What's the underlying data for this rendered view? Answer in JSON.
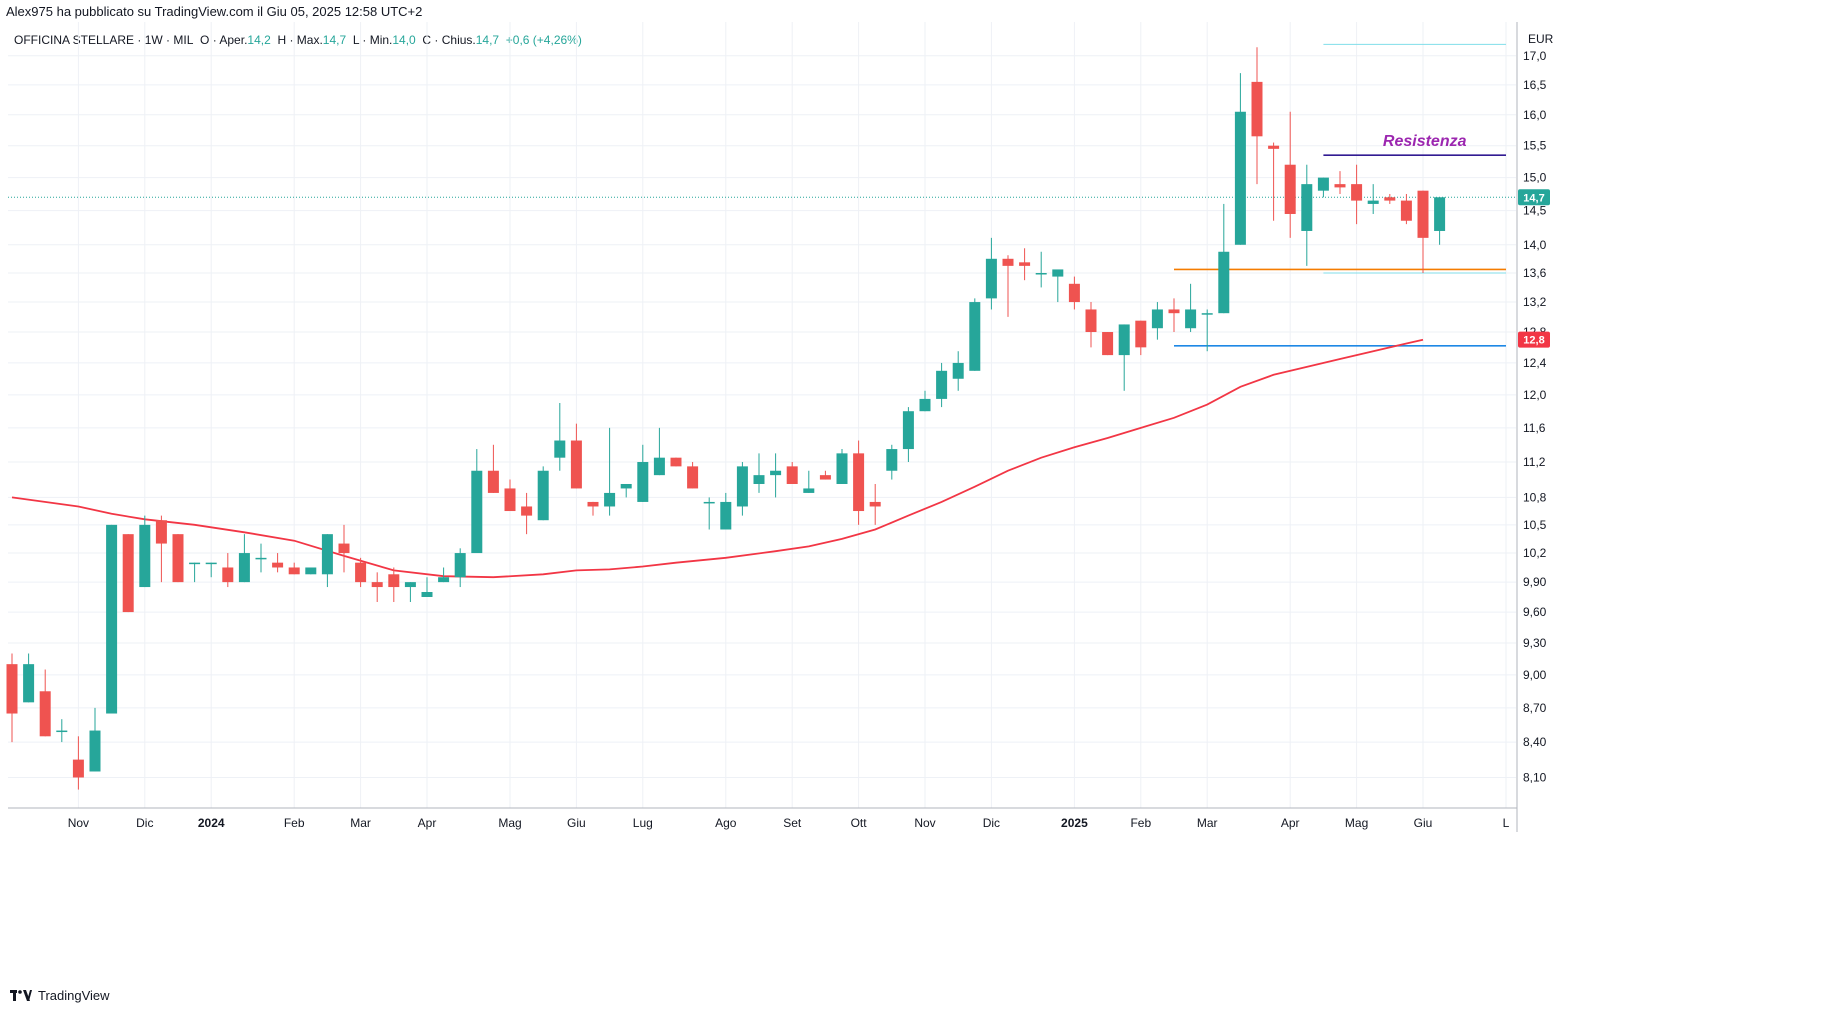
{
  "header": {
    "published_by": "Alex975 ha pubblicato su TradingView.com il Giu 05, 2025 12:58 UTC+2"
  },
  "legend": {
    "symbol": "OFFICINA STELLARE · 1W · MIL",
    "open_label": "O · Aper.",
    "open": "14,2",
    "high_label": "H · Max.",
    "high": "14,7",
    "low_label": "L · Min.",
    "low": "14,0",
    "close_label": "C · Chius.",
    "close": "14,7",
    "change": "+0,6 (+4,26%)"
  },
  "footer": {
    "brand": "TradingView"
  },
  "colors": {
    "up": "#26a69a",
    "down": "#ef5350",
    "ma": "#f23645",
    "resistance": "#311b92",
    "resistance_label": "#9c27b0",
    "support_orange": "#f57c00",
    "support_blue": "#1e88e5",
    "cyan_level": "#80deea",
    "grid": "#eef1f6"
  },
  "chart_data": {
    "type": "candlestick",
    "currency": "EUR",
    "y_scale": "log",
    "ylim": [
      7.85,
      17.6
    ],
    "y_ticks": [
      "17,0",
      "16,5",
      "16,0",
      "15,5",
      "15,0",
      "14,5",
      "14,0",
      "13,6",
      "13,2",
      "12,8",
      "12,4",
      "12,0",
      "11,6",
      "11,2",
      "10,8",
      "10,5",
      "10,2",
      "9,90",
      "9,60",
      "9,30",
      "9,00",
      "8,70",
      "8,40",
      "8,10"
    ],
    "y_tick_values": [
      17.0,
      16.5,
      16.0,
      15.5,
      15.0,
      14.5,
      14.0,
      13.6,
      13.2,
      12.8,
      12.4,
      12.0,
      11.6,
      11.2,
      10.8,
      10.5,
      10.2,
      9.9,
      9.6,
      9.3,
      9.0,
      8.7,
      8.4,
      8.1
    ],
    "x_labels": [
      {
        "label": "Nov",
        "i": 4
      },
      {
        "label": "Dic",
        "i": 8
      },
      {
        "label": "2024",
        "i": 12
      },
      {
        "label": "Feb",
        "i": 17
      },
      {
        "label": "Mar",
        "i": 21
      },
      {
        "label": "Apr",
        "i": 25
      },
      {
        "label": "Mag",
        "i": 30
      },
      {
        "label": "Giu",
        "i": 34
      },
      {
        "label": "Lug",
        "i": 38
      },
      {
        "label": "Ago",
        "i": 43
      },
      {
        "label": "Set",
        "i": 47
      },
      {
        "label": "Ott",
        "i": 51
      },
      {
        "label": "Nov",
        "i": 55
      },
      {
        "label": "Dic",
        "i": 59
      },
      {
        "label": "2025",
        "i": 64
      },
      {
        "label": "Feb",
        "i": 68
      },
      {
        "label": "Mar",
        "i": 72
      },
      {
        "label": "Apr",
        "i": 77
      },
      {
        "label": "Mag",
        "i": 81
      },
      {
        "label": "Giu",
        "i": 85
      },
      {
        "label": "L",
        "i": 90
      }
    ],
    "candles": [
      {
        "o": 9.1,
        "h": 9.2,
        "c": 8.65,
        "l": 8.4
      },
      {
        "o": 8.75,
        "h": 9.2,
        "c": 9.1,
        "l": 8.75
      },
      {
        "o": 8.85,
        "h": 9.05,
        "c": 8.45,
        "l": 8.45
      },
      {
        "o": 8.5,
        "h": 8.6,
        "c": 8.5,
        "l": 8.4
      },
      {
        "o": 8.25,
        "h": 8.45,
        "c": 8.1,
        "l": 8.0
      },
      {
        "o": 8.15,
        "h": 8.7,
        "c": 8.5,
        "l": 8.15
      },
      {
        "o": 8.65,
        "h": 10.5,
        "c": 10.5,
        "l": 8.65
      },
      {
        "o": 10.4,
        "h": 10.4,
        "c": 9.6,
        "l": 9.6
      },
      {
        "o": 9.85,
        "h": 10.6,
        "c": 10.5,
        "l": 9.85
      },
      {
        "o": 10.55,
        "h": 10.6,
        "c": 10.3,
        "l": 9.9
      },
      {
        "o": 10.4,
        "h": 10.4,
        "c": 9.9,
        "l": 9.9
      },
      {
        "o": 10.1,
        "h": 10.1,
        "c": 10.1,
        "l": 9.9
      },
      {
        "o": 10.1,
        "h": 10.1,
        "c": 10.1,
        "l": 9.95
      },
      {
        "o": 10.05,
        "h": 10.2,
        "c": 9.9,
        "l": 9.85
      },
      {
        "o": 9.9,
        "h": 10.4,
        "c": 10.2,
        "l": 9.9
      },
      {
        "o": 10.15,
        "h": 10.3,
        "c": 10.15,
        "l": 10.0
      },
      {
        "o": 10.1,
        "h": 10.2,
        "c": 10.05,
        "l": 10.0
      },
      {
        "o": 10.05,
        "h": 10.1,
        "c": 9.98,
        "l": 9.98
      },
      {
        "o": 9.98,
        "h": 10.05,
        "c": 10.05,
        "l": 9.98
      },
      {
        "o": 9.98,
        "h": 10.4,
        "c": 10.4,
        "l": 9.85
      },
      {
        "o": 10.3,
        "h": 10.5,
        "c": 10.2,
        "l": 10.0
      },
      {
        "o": 10.1,
        "h": 10.15,
        "c": 9.9,
        "l": 9.85
      },
      {
        "o": 9.9,
        "h": 10.0,
        "c": 9.85,
        "l": 9.7
      },
      {
        "o": 9.98,
        "h": 10.05,
        "c": 9.85,
        "l": 9.7
      },
      {
        "o": 9.85,
        "h": 9.9,
        "c": 9.9,
        "l": 9.7
      },
      {
        "o": 9.75,
        "h": 9.95,
        "c": 9.8,
        "l": 9.75
      },
      {
        "o": 9.9,
        "h": 10.05,
        "c": 9.95,
        "l": 9.9
      },
      {
        "o": 9.95,
        "h": 10.25,
        "c": 10.2,
        "l": 9.85
      },
      {
        "o": 10.2,
        "h": 11.35,
        "c": 11.1,
        "l": 10.25
      },
      {
        "o": 11.1,
        "h": 11.4,
        "c": 10.85,
        "l": 10.85
      },
      {
        "o": 10.9,
        "h": 11.0,
        "c": 10.65,
        "l": 10.65
      },
      {
        "o": 10.7,
        "h": 10.85,
        "c": 10.6,
        "l": 10.4
      },
      {
        "o": 10.55,
        "h": 11.15,
        "c": 11.1,
        "l": 10.55
      },
      {
        "o": 11.25,
        "h": 11.9,
        "c": 11.45,
        "l": 11.1
      },
      {
        "o": 11.45,
        "h": 11.65,
        "c": 10.9,
        "l": 10.9
      },
      {
        "o": 10.75,
        "h": 10.75,
        "c": 10.7,
        "l": 10.6
      },
      {
        "o": 10.7,
        "h": 11.6,
        "c": 10.85,
        "l": 10.6
      },
      {
        "o": 10.9,
        "h": 10.9,
        "c": 10.95,
        "l": 10.8
      },
      {
        "o": 10.75,
        "h": 11.4,
        "c": 11.2,
        "l": 10.75
      },
      {
        "o": 11.05,
        "h": 11.6,
        "c": 11.25,
        "l": 11.05
      },
      {
        "o": 11.25,
        "h": 11.25,
        "c": 11.15,
        "l": 11.15
      },
      {
        "o": 11.15,
        "h": 11.2,
        "c": 10.9,
        "l": 10.9
      },
      {
        "o": 10.75,
        "h": 10.8,
        "c": 10.75,
        "l": 10.45
      },
      {
        "o": 10.45,
        "h": 10.85,
        "c": 10.75,
        "l": 10.45
      },
      {
        "o": 10.7,
        "h": 11.2,
        "c": 11.15,
        "l": 10.6
      },
      {
        "o": 10.95,
        "h": 11.3,
        "c": 11.05,
        "l": 10.85
      },
      {
        "o": 11.05,
        "h": 11.3,
        "c": 11.1,
        "l": 10.8
      },
      {
        "o": 11.15,
        "h": 11.2,
        "c": 10.95,
        "l": 10.95
      },
      {
        "o": 10.85,
        "h": 11.1,
        "c": 10.9,
        "l": 10.85
      },
      {
        "o": 11.05,
        "h": 11.1,
        "c": 11.0,
        "l": 11.0
      },
      {
        "o": 10.95,
        "h": 11.35,
        "c": 11.3,
        "l": 10.95
      },
      {
        "o": 11.3,
        "h": 11.45,
        "c": 10.65,
        "l": 10.5
      },
      {
        "o": 10.75,
        "h": 10.95,
        "c": 10.7,
        "l": 10.5
      },
      {
        "o": 11.1,
        "h": 11.4,
        "c": 11.35,
        "l": 11.0
      },
      {
        "o": 11.35,
        "h": 11.85,
        "c": 11.8,
        "l": 11.2
      },
      {
        "o": 11.8,
        "h": 12.05,
        "c": 11.95,
        "l": 11.8
      },
      {
        "o": 11.95,
        "h": 12.4,
        "c": 12.3,
        "l": 11.85
      },
      {
        "o": 12.2,
        "h": 12.55,
        "c": 12.4,
        "l": 12.05
      },
      {
        "o": 12.3,
        "h": 13.25,
        "c": 13.2,
        "l": 12.3
      },
      {
        "o": 13.25,
        "h": 14.1,
        "c": 13.8,
        "l": 13.1
      },
      {
        "o": 13.8,
        "h": 13.85,
        "c": 13.7,
        "l": 13.0
      },
      {
        "o": 13.75,
        "h": 13.95,
        "c": 13.7,
        "l": 13.5
      },
      {
        "o": 13.6,
        "h": 13.9,
        "c": 13.6,
        "l": 13.4
      },
      {
        "o": 13.55,
        "h": 13.6,
        "c": 13.65,
        "l": 13.2
      },
      {
        "o": 13.45,
        "h": 13.55,
        "c": 13.2,
        "l": 13.1
      },
      {
        "o": 13.1,
        "h": 13.2,
        "c": 12.8,
        "l": 12.6
      },
      {
        "o": 12.8,
        "h": 12.8,
        "c": 12.5,
        "l": 12.5
      },
      {
        "o": 12.5,
        "h": 12.9,
        "c": 12.9,
        "l": 12.05
      },
      {
        "o": 12.95,
        "h": 12.95,
        "c": 12.6,
        "l": 12.5
      },
      {
        "o": 12.85,
        "h": 13.2,
        "c": 13.1,
        "l": 12.7
      },
      {
        "o": 13.1,
        "h": 13.25,
        "c": 13.05,
        "l": 12.8
      },
      {
        "o": 12.85,
        "h": 13.45,
        "c": 13.1,
        "l": 12.8
      },
      {
        "o": 13.05,
        "h": 13.1,
        "c": 13.05,
        "l": 12.55
      },
      {
        "o": 13.05,
        "h": 14.6,
        "c": 13.9,
        "l": 13.05
      },
      {
        "o": 14.0,
        "h": 16.7,
        "c": 16.05,
        "l": 14.0
      },
      {
        "o": 16.55,
        "h": 17.15,
        "c": 15.65,
        "l": 14.9
      },
      {
        "o": 15.5,
        "h": 15.55,
        "c": 15.45,
        "l": 14.35
      },
      {
        "o": 15.2,
        "h": 16.05,
        "c": 14.45,
        "l": 14.1
      },
      {
        "o": 14.2,
        "h": 15.2,
        "c": 14.9,
        "l": 13.7
      },
      {
        "o": 14.8,
        "h": 15.0,
        "c": 15.0,
        "l": 14.7
      },
      {
        "o": 14.9,
        "h": 15.1,
        "c": 14.85,
        "l": 14.75
      },
      {
        "o": 14.9,
        "h": 15.2,
        "c": 14.65,
        "l": 14.3
      },
      {
        "o": 14.6,
        "h": 14.9,
        "c": 14.65,
        "l": 14.45
      },
      {
        "o": 14.7,
        "h": 14.75,
        "c": 14.65,
        "l": 14.6
      },
      {
        "o": 14.65,
        "h": 14.75,
        "c": 14.35,
        "l": 14.3
      },
      {
        "o": 14.8,
        "h": 14.8,
        "c": 14.1,
        "l": 13.6
      },
      {
        "o": 14.2,
        "h": 14.7,
        "c": 14.7,
        "l": 14.0
      }
    ],
    "ma_label": "12,8",
    "ma_values": [
      [
        0,
        10.8
      ],
      [
        4,
        10.7
      ],
      [
        6,
        10.62
      ],
      [
        8,
        10.56
      ],
      [
        11,
        10.5
      ],
      [
        14,
        10.42
      ],
      [
        17,
        10.33
      ],
      [
        20,
        10.17
      ],
      [
        23,
        10.02
      ],
      [
        26,
        9.96
      ],
      [
        29,
        9.95
      ],
      [
        32,
        9.98
      ],
      [
        34,
        10.02
      ],
      [
        36,
        10.03
      ],
      [
        38,
        10.06
      ],
      [
        40,
        10.1
      ],
      [
        43,
        10.15
      ],
      [
        46,
        10.22
      ],
      [
        48,
        10.27
      ],
      [
        50,
        10.35
      ],
      [
        52,
        10.45
      ],
      [
        54,
        10.6
      ],
      [
        56,
        10.75
      ],
      [
        58,
        10.92
      ],
      [
        60,
        11.1
      ],
      [
        62,
        11.25
      ],
      [
        64,
        11.37
      ],
      [
        66,
        11.48
      ],
      [
        68,
        11.6
      ],
      [
        70,
        11.72
      ],
      [
        72,
        11.88
      ],
      [
        74,
        12.1
      ],
      [
        76,
        12.25
      ],
      [
        78,
        12.35
      ],
      [
        80,
        12.45
      ],
      [
        82,
        12.55
      ],
      [
        84,
        12.65
      ],
      [
        85,
        12.7
      ]
    ],
    "levels": [
      {
        "name": "Resistenza",
        "value": 15.35,
        "from": 79,
        "to": 90,
        "color": "#311b92",
        "label": "Resistenza"
      },
      {
        "name": "orange",
        "value": 13.65,
        "from": 70,
        "to": 90,
        "color": "#f57c00"
      },
      {
        "name": "blue",
        "value": 12.62,
        "from": 70,
        "to": 90,
        "color": "#1e88e5"
      },
      {
        "name": "cyan_top",
        "value": 17.2,
        "from": 79,
        "to": 90,
        "color": "#80deea"
      },
      {
        "name": "cyan_low",
        "value": 13.6,
        "from": 79,
        "to": 90,
        "color": "#80deea"
      }
    ],
    "last_price": {
      "value": 14.7,
      "label": "14,7"
    }
  }
}
